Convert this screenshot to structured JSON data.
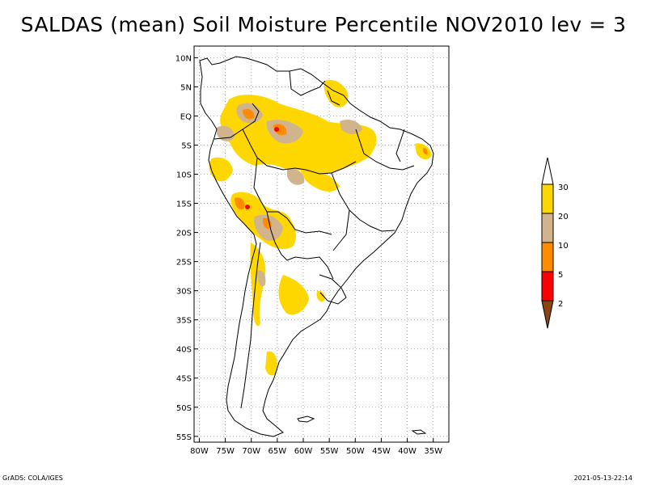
{
  "title": "SALDAS (mean) Soil Moisture Percentile NOV2010 lev = 3",
  "footer": {
    "left": "GrADS: COLA/IGES",
    "right": "2021-05-13-22:14"
  },
  "axes": {
    "lat_labels": [
      "10N",
      "5N",
      "EQ",
      "5S",
      "10S",
      "15S",
      "20S",
      "25S",
      "30S",
      "35S",
      "40S",
      "45S",
      "50S",
      "55S"
    ],
    "lat_values": [
      10,
      5,
      0,
      -5,
      -10,
      -15,
      -20,
      -25,
      -30,
      -35,
      -40,
      -45,
      -50,
      -55
    ],
    "lon_labels": [
      "80W",
      "75W",
      "70W",
      "65W",
      "60W",
      "55W",
      "50W",
      "45W",
      "40W",
      "35W"
    ],
    "lon_values": [
      -80,
      -75,
      -70,
      -65,
      -60,
      -55,
      -50,
      -45,
      -40,
      -35
    ],
    "lon_range": [
      -81,
      -32
    ],
    "lat_range": [
      12,
      -56
    ]
  },
  "legend": {
    "labels": [
      "30",
      "20",
      "10",
      "5",
      "2"
    ],
    "colors": {
      "above30": "#ffffff",
      "b20_30": "#ffd700",
      "b10_20": "#d2b48c",
      "b5_10": "#ff8c00",
      "b2_5": "#ff0000",
      "below2": "#8b4513"
    }
  }
}
